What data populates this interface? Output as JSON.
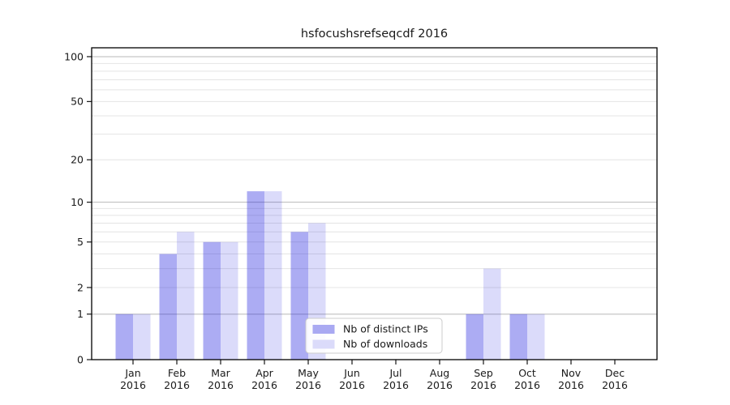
{
  "chart_data": {
    "type": "bar",
    "title": "hsfocushsrefseqcdf 2016",
    "categories": [
      "Jan",
      "Feb",
      "Mar",
      "Apr",
      "May",
      "Jun",
      "Jul",
      "Aug",
      "Sep",
      "Oct",
      "Nov",
      "Dec"
    ],
    "year_label": "2016",
    "series": [
      {
        "name": "Nb of distinct IPs",
        "color": "#a9a9f2",
        "fill": "rgba(30,30,222,0.37)",
        "values": [
          1,
          4,
          5,
          12,
          6,
          0,
          0,
          0,
          1,
          1,
          0,
          0
        ]
      },
      {
        "name": "Nb of downloads",
        "color": "#dbdbfa",
        "fill": "rgba(30,30,222,0.16)",
        "values": [
          1,
          6,
          5,
          12,
          7,
          0,
          0,
          0,
          3,
          1,
          0,
          0
        ]
      }
    ],
    "yscale": "log(1+y)",
    "ylim": [
      0,
      115
    ],
    "yticks": [
      0,
      1,
      2,
      5,
      10,
      20,
      50,
      100
    ],
    "ygrid_major": [
      1,
      10,
      100
    ],
    "ygrid_minor": [
      2,
      3,
      4,
      5,
      6,
      7,
      8,
      9,
      20,
      30,
      40,
      50,
      60,
      70,
      80,
      90
    ],
    "grid": true,
    "legend": {
      "position": "lower center"
    }
  },
  "style": {
    "background": "#ffffff",
    "text_color": "#1a1a1a",
    "spine_color": "#000000",
    "grid_major_color": "#b8b8b8",
    "grid_minor_color": "#e4e4e4",
    "legend_border": "#cccccc",
    "legend_background": "#ffffff"
  }
}
